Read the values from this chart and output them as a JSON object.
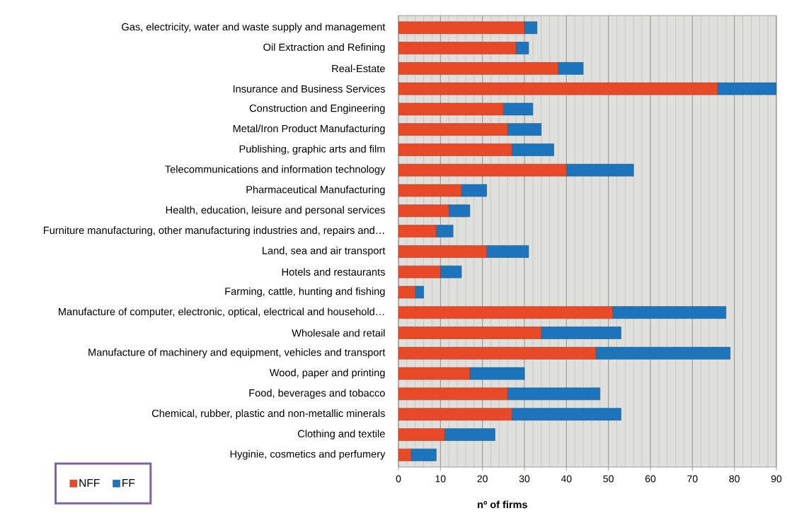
{
  "chart_data": {
    "type": "bar",
    "orientation": "horizontal",
    "stacked": true,
    "xlabel": "nº of firms",
    "categories": [
      "Gas, electricity, water and waste supply and management",
      "Oil Extraction and Refining",
      "Real-Estate",
      "Insurance and Business Services",
      "Construction and Engineering",
      "Metal/Iron Product Manufacturing",
      "Publishing, graphic arts and film",
      "Telecommunications and information technology",
      "Pharmaceutical Manufacturing",
      "Health, education, leisure and personal services",
      "Furniture manufacturing, other manufacturing industries and, repairs and…",
      "Land, sea and air transport",
      "Hotels and restaurants",
      "Farming, cattle, hunting and fishing",
      "Manufacture of computer, electronic, optical, electrical and household…",
      "Wholesale and retail",
      "Manufacture of machinery and equipment, vehicles and transport",
      "Wood, paper and printing",
      "Food, beverages and tobacco",
      "Chemical, rubber, plastic and non-metallic minerals",
      "Clothing and textile",
      "Hyginie, cosmetics and perfumery"
    ],
    "series": [
      {
        "name": "NFF",
        "color": "#e84a27",
        "values": [
          30,
          28,
          38,
          76,
          25,
          26,
          27,
          40,
          15,
          12,
          9,
          21,
          10,
          4,
          51,
          34,
          47,
          17,
          26,
          27,
          11,
          3
        ]
      },
      {
        "name": "FF",
        "color": "#1c75bc",
        "values": [
          3,
          3,
          6,
          14,
          7,
          8,
          10,
          16,
          6,
          5,
          4,
          10,
          5,
          2,
          27,
          19,
          32,
          13,
          22,
          26,
          12,
          6
        ]
      }
    ],
    "xlim": [
      0,
      90
    ],
    "xticks": [
      0,
      10,
      20,
      30,
      40,
      50,
      60,
      70,
      80,
      90
    ],
    "grid": "x",
    "legend": "bottom left"
  }
}
